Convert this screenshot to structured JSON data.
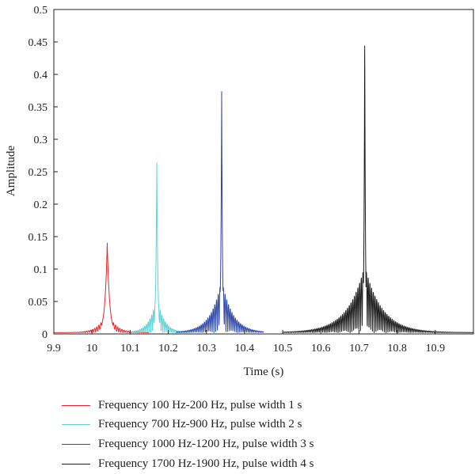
{
  "chart_data": {
    "type": "line",
    "xlabel": "Time (s)",
    "ylabel": "Amplitude",
    "xlim": [
      9.9,
      11.0
    ],
    "ylim": [
      0,
      0.5
    ],
    "x_ticks": [
      "9.9",
      "10",
      "10.1",
      "10.2",
      "10.3",
      "10.4",
      "10.5",
      "10.6",
      "10.7",
      "10.8",
      "10.9"
    ],
    "y_ticks": [
      "0",
      "0.05",
      "0.1",
      "0.15",
      "0.2",
      "0.25",
      "0.3",
      "0.35",
      "0.4",
      "0.45",
      "0.5"
    ],
    "grid": false,
    "legend_position": "bottom",
    "series": [
      {
        "name": "Frequency 100 Hz-200 Hz, pulse width 1 s",
        "color": "#e8242c",
        "peak_time": 10.04,
        "peak_amplitude": 0.138,
        "side_lobe_amplitude": 0.035,
        "ripple_period": 0.0055,
        "width": 0.006,
        "decay": 0.02,
        "span": [
          9.9,
          10.15
        ]
      },
      {
        "name": "Frequency 700 Hz-900 Hz, pulse width 2 s",
        "color": "#5fd3d6",
        "peak_time": 10.17,
        "peak_amplitude": 0.262,
        "side_lobe_amplitude": 0.058,
        "ripple_period": 0.0045,
        "width": 0.0025,
        "decay": 0.018,
        "span": [
          10.1,
          10.25
        ]
      },
      {
        "name": "Frequency 1000 Hz-1200 Hz, pulse width 3 s",
        "color": "#2e49a8",
        "peak_time": 10.34,
        "peak_amplitude": 0.381,
        "side_lobe_amplitude": 0.082,
        "ripple_period": 0.0045,
        "width": 0.002,
        "decay": 0.028,
        "span": [
          10.22,
          10.45
        ]
      },
      {
        "name": "Frequency 1700 Hz-1900 Hz, pulse width 4 s",
        "color": "#1a1a1a",
        "peak_time": 10.715,
        "peak_amplitude": 0.467,
        "side_lobe_amplitude": 0.103,
        "ripple_period": 0.0045,
        "width": 0.0018,
        "decay": 0.045,
        "span": [
          10.5,
          11.0
        ]
      }
    ]
  }
}
